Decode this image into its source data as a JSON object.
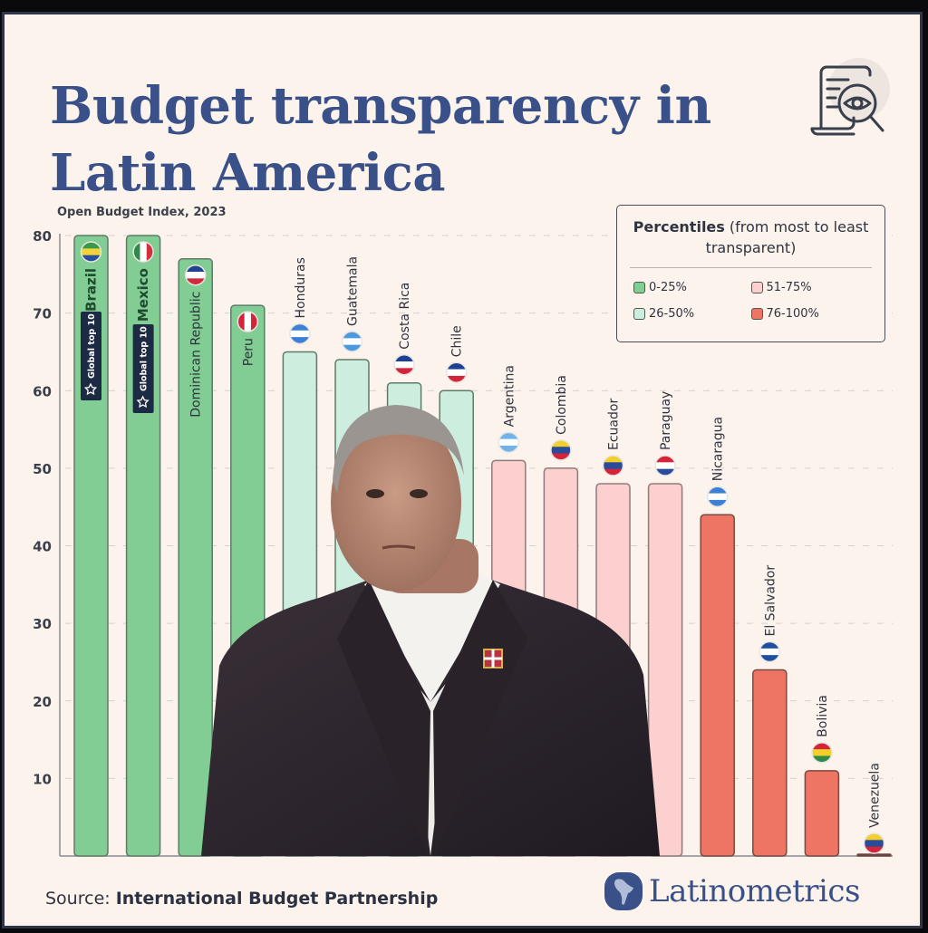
{
  "title": {
    "line1": "Budget transparency in",
    "line2": "Latin America"
  },
  "icons": {
    "hero": "document-magnifier-eye-icon",
    "badge": "star-icon",
    "brand": "latin-america-globe-icon"
  },
  "legend": {
    "title_bold": "Percentiles",
    "title_rest": " (from most to least transparent)",
    "items": [
      {
        "label": "0-25%",
        "color": "#82cd93"
      },
      {
        "label": "51-75%",
        "color": "#fbd0cf"
      },
      {
        "label": "26-50%",
        "color": "#cdeedf"
      },
      {
        "label": "76-100%",
        "color": "#ee7463"
      }
    ]
  },
  "badge_label": "Global top 10",
  "photo_caption": "Portrait of a man in a dark suit overlaid on the chart",
  "footer": {
    "source_prefix": "Source: ",
    "source_name": "International Budget Partnership",
    "brand": "Latinometrics"
  },
  "chart_data": {
    "type": "bar",
    "title": "Budget transparency in Latin America",
    "subtitle": "Open Budget Index, 2023",
    "xlabel": "",
    "ylabel": "Open Budget Index, 2023",
    "ylim": [
      0,
      80
    ],
    "yticks": [
      10,
      20,
      30,
      40,
      50,
      60,
      70,
      80
    ],
    "grid": true,
    "legend_position": "top-right",
    "categories": [
      "Brazil",
      "Mexico",
      "Dominican Republic",
      "Peru",
      "Honduras",
      "Guatemala",
      "Costa Rica",
      "Chile",
      "Argentina",
      "Colombia",
      "Ecuador",
      "Paraguay",
      "Nicaragua",
      "El Salvador",
      "Bolivia",
      "Venezuela"
    ],
    "values": [
      80,
      80,
      77,
      71,
      65,
      64,
      61,
      60,
      51,
      50,
      48,
      48,
      44,
      24,
      11,
      0
    ],
    "percentile_group": [
      "0-25%",
      "0-25%",
      "0-25%",
      "0-25%",
      "26-50%",
      "26-50%",
      "26-50%",
      "26-50%",
      "51-75%",
      "51-75%",
      "51-75%",
      "51-75%",
      "76-100%",
      "76-100%",
      "76-100%",
      "76-100%"
    ],
    "group_colors": {
      "0-25%": "#82cd93",
      "26-50%": "#cdeedf",
      "51-75%": "#fbd0cf",
      "76-100%": "#ee7463"
    },
    "annotations": [
      {
        "category": "Brazil",
        "text": "Global top 10"
      },
      {
        "category": "Mexico",
        "text": "Global top 10"
      }
    ],
    "flags": {
      "Brazil": [
        "#3a9a4a",
        "#f2d33b",
        "#2a4f9b"
      ],
      "Mexico": [
        "#2f8a4a",
        "#ffffff",
        "#d2303a"
      ],
      "Dominican Republic": [
        "#21448f",
        "#ffffff",
        "#cf2a3a"
      ],
      "Peru": [
        "#d3243a",
        "#ffffff",
        "#d3243a"
      ],
      "Honduras": [
        "#3b7fd6",
        "#ffffff",
        "#3b7fd6"
      ],
      "Guatemala": [
        "#4a9ae0",
        "#ffffff",
        "#4a9ae0"
      ],
      "Costa Rica": [
        "#1f3f92",
        "#ffffff",
        "#d3243a"
      ],
      "Chile": [
        "#1f3f92",
        "#ffffff",
        "#d3243a"
      ],
      "Argentina": [
        "#6fb3e8",
        "#ffffff",
        "#6fb3e8"
      ],
      "Colombia": [
        "#f3cf2a",
        "#2a4a9a",
        "#d3243a"
      ],
      "Ecuador": [
        "#f3cf2a",
        "#2a4a9a",
        "#d3243a"
      ],
      "Paraguay": [
        "#d3243a",
        "#ffffff",
        "#2a4a9a"
      ],
      "Nicaragua": [
        "#3b7fd6",
        "#ffffff",
        "#3b7fd6"
      ],
      "El Salvador": [
        "#1f4fa0",
        "#ffffff",
        "#1f4fa0"
      ],
      "Bolivia": [
        "#d3243a",
        "#f3cf2a",
        "#2f8a4a"
      ],
      "Venezuela": [
        "#f3cf2a",
        "#2a4a9a",
        "#d3243a"
      ]
    }
  }
}
